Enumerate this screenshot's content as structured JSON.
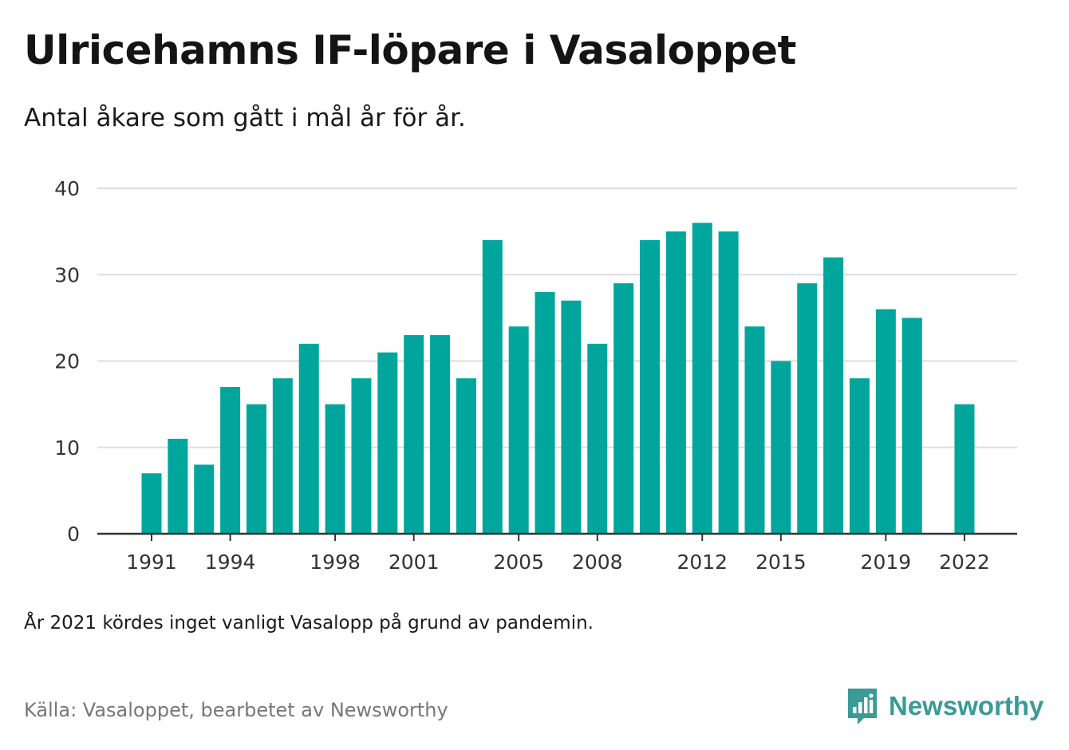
{
  "title": "Ulricehamns IF-löpare i Vasaloppet",
  "subtitle": "Antal åkare som gått i mål år för år.",
  "note": "År 2021 kördes inget vanligt Vasalopp på grund av pandemin.",
  "source": "Källa: Vasaloppet, bearbetet av Newsworthy",
  "brand": {
    "name": "Newsworthy",
    "icon": "newsworthy-logo-icon",
    "color": "#3a9a96"
  },
  "colors": {
    "bar": "#00a69c",
    "grid": "#dddddd",
    "axis": "#333333"
  },
  "chart_data": {
    "type": "bar",
    "title": "Ulricehamns IF-löpare i Vasaloppet",
    "xlabel": "",
    "ylabel": "",
    "ylim": [
      0,
      40
    ],
    "yticks": [
      0,
      10,
      20,
      30,
      40
    ],
    "xticks": [
      1991,
      1994,
      1998,
      2001,
      2005,
      2008,
      2012,
      2015,
      2019,
      2022
    ],
    "grid": true,
    "categories": [
      1991,
      1992,
      1993,
      1994,
      1995,
      1996,
      1997,
      1998,
      1999,
      2000,
      2001,
      2002,
      2003,
      2004,
      2005,
      2006,
      2007,
      2008,
      2009,
      2010,
      2011,
      2012,
      2013,
      2014,
      2015,
      2016,
      2017,
      2018,
      2019,
      2020,
      2021,
      2022
    ],
    "values": [
      7,
      11,
      8,
      17,
      15,
      18,
      22,
      15,
      18,
      21,
      23,
      23,
      18,
      34,
      24,
      28,
      27,
      22,
      29,
      34,
      35,
      36,
      35,
      24,
      20,
      29,
      32,
      18,
      26,
      25,
      null,
      15
    ]
  }
}
